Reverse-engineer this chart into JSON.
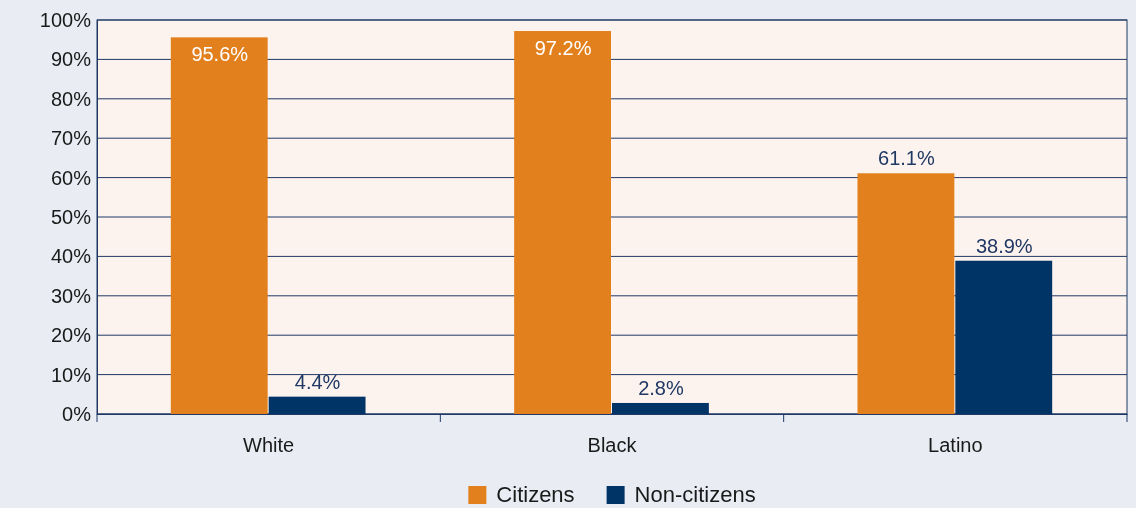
{
  "chart_data": {
    "type": "bar",
    "categories": [
      "White",
      "Black",
      "Latino"
    ],
    "series": [
      {
        "name": "Citizens",
        "color": "#e3801e",
        "values": [
          95.6,
          97.2,
          61.1
        ]
      },
      {
        "name": "Non-citizens",
        "color": "#003366",
        "values": [
          4.4,
          2.8,
          38.9
        ]
      }
    ],
    "ylim": [
      0,
      100
    ],
    "yticks": [
      {
        "value": 0,
        "label": "0%"
      },
      {
        "value": 10,
        "label": "10%"
      },
      {
        "value": 20,
        "label": "20%"
      },
      {
        "value": 30,
        "label": "30%"
      },
      {
        "value": 40,
        "label": "40%"
      },
      {
        "value": 50,
        "label": "50%"
      },
      {
        "value": 60,
        "label": "60%"
      },
      {
        "value": 70,
        "label": "70%"
      },
      {
        "value": 80,
        "label": "80%"
      },
      {
        "value": 90,
        "label": "90%"
      },
      {
        "value": 100,
        "label": "100%"
      }
    ],
    "value_labels": [
      [
        "95.6%",
        "97.2%",
        "61.1%"
      ],
      [
        "4.4%",
        "2.8%",
        "38.9%"
      ]
    ],
    "grid": "y",
    "legend": "bottom"
  }
}
